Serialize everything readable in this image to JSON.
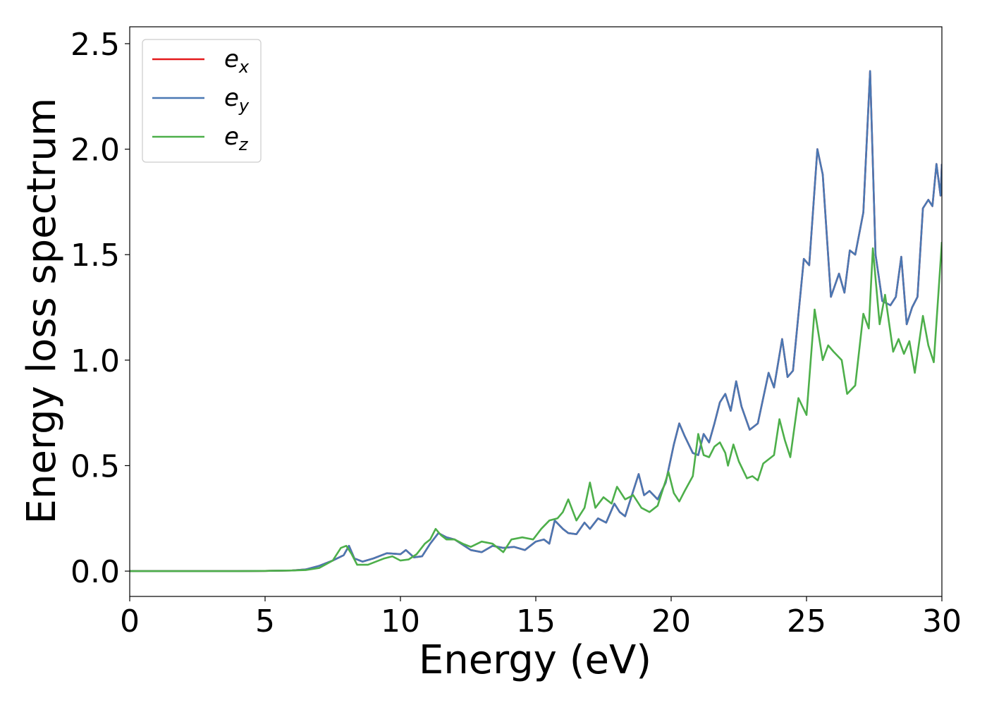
{
  "chart_data": {
    "type": "line",
    "title": "",
    "xlabel": "Energy (eV)",
    "ylabel": "Energy loss spectrum",
    "xlim": [
      0,
      30
    ],
    "ylim": [
      -0.12,
      2.58
    ],
    "xticks": [
      {
        "value": 0,
        "label": "0"
      },
      {
        "value": 5,
        "label": "5"
      },
      {
        "value": 10,
        "label": "10"
      },
      {
        "value": 15,
        "label": "15"
      },
      {
        "value": 20,
        "label": "20"
      },
      {
        "value": 25,
        "label": "25"
      },
      {
        "value": 30,
        "label": "30"
      }
    ],
    "yticks": [
      {
        "value": 0.0,
        "label": "0.0"
      },
      {
        "value": 0.5,
        "label": "0.5"
      },
      {
        "value": 1.0,
        "label": "1.0"
      },
      {
        "value": 1.5,
        "label": "1.5"
      },
      {
        "value": 2.0,
        "label": "2.0"
      },
      {
        "value": 2.5,
        "label": "2.5"
      }
    ],
    "grid": false,
    "legend_position": "top-left",
    "series": [
      {
        "name": "e",
        "subscript": "x",
        "color": "#e41a1c",
        "points": [
          [
            0,
            0
          ],
          [
            2,
            0
          ],
          [
            4,
            0
          ],
          [
            5,
            0.001
          ],
          [
            6,
            0.003
          ],
          [
            6.5,
            0.008
          ],
          [
            7,
            0.025
          ],
          [
            7.5,
            0.05
          ],
          [
            7.9,
            0.075
          ],
          [
            8.1,
            0.12
          ],
          [
            8.3,
            0.06
          ],
          [
            8.6,
            0.045
          ],
          [
            9,
            0.06
          ],
          [
            9.5,
            0.085
          ],
          [
            10,
            0.08
          ],
          [
            10.2,
            0.1
          ],
          [
            10.5,
            0.065
          ],
          [
            10.8,
            0.07
          ],
          [
            11.1,
            0.13
          ],
          [
            11.4,
            0.18
          ],
          [
            11.7,
            0.16
          ],
          [
            12,
            0.15
          ],
          [
            12.3,
            0.125
          ],
          [
            12.6,
            0.1
          ],
          [
            13,
            0.09
          ],
          [
            13.4,
            0.12
          ],
          [
            13.8,
            0.11
          ],
          [
            14.2,
            0.115
          ],
          [
            14.6,
            0.1
          ],
          [
            15,
            0.14
          ],
          [
            15.3,
            0.15
          ],
          [
            15.5,
            0.13
          ],
          [
            15.7,
            0.24
          ],
          [
            16,
            0.2
          ],
          [
            16.2,
            0.18
          ],
          [
            16.5,
            0.175
          ],
          [
            16.8,
            0.23
          ],
          [
            17,
            0.2
          ],
          [
            17.3,
            0.25
          ],
          [
            17.6,
            0.23
          ],
          [
            17.9,
            0.32
          ],
          [
            18.1,
            0.28
          ],
          [
            18.3,
            0.26
          ],
          [
            18.5,
            0.34
          ],
          [
            18.8,
            0.46
          ],
          [
            19,
            0.36
          ],
          [
            19.2,
            0.38
          ],
          [
            19.5,
            0.34
          ],
          [
            19.8,
            0.42
          ],
          [
            20.1,
            0.6
          ],
          [
            20.3,
            0.7
          ],
          [
            20.5,
            0.64
          ],
          [
            20.8,
            0.56
          ],
          [
            21,
            0.55
          ],
          [
            21.2,
            0.65
          ],
          [
            21.4,
            0.61
          ],
          [
            21.6,
            0.7
          ],
          [
            21.8,
            0.8
          ],
          [
            22,
            0.84
          ],
          [
            22.2,
            0.76
          ],
          [
            22.4,
            0.9
          ],
          [
            22.6,
            0.78
          ],
          [
            22.9,
            0.67
          ],
          [
            23.2,
            0.7
          ],
          [
            23.6,
            0.94
          ],
          [
            23.8,
            0.87
          ],
          [
            24.1,
            1.1
          ],
          [
            24.3,
            0.92
          ],
          [
            24.5,
            0.95
          ],
          [
            24.9,
            1.48
          ],
          [
            25.1,
            1.45
          ],
          [
            25.4,
            2.0
          ],
          [
            25.6,
            1.88
          ],
          [
            25.9,
            1.3
          ],
          [
            26.2,
            1.41
          ],
          [
            26.4,
            1.32
          ],
          [
            26.6,
            1.52
          ],
          [
            26.8,
            1.5
          ],
          [
            27.1,
            1.7
          ],
          [
            27.35,
            2.37
          ],
          [
            27.55,
            1.5
          ],
          [
            27.8,
            1.28
          ],
          [
            28.1,
            1.26
          ],
          [
            28.3,
            1.3
          ],
          [
            28.5,
            1.49
          ],
          [
            28.7,
            1.17
          ],
          [
            28.9,
            1.25
          ],
          [
            29.1,
            1.3
          ],
          [
            29.3,
            1.72
          ],
          [
            29.5,
            1.76
          ],
          [
            29.65,
            1.73
          ],
          [
            29.8,
            1.93
          ],
          [
            29.95,
            1.78
          ],
          [
            30,
            1.93
          ]
        ]
      },
      {
        "name": "e",
        "subscript": "y",
        "color": "#4a78b3",
        "points": [
          [
            0,
            0
          ],
          [
            2,
            0
          ],
          [
            4,
            0
          ],
          [
            5,
            0.001
          ],
          [
            6,
            0.003
          ],
          [
            6.5,
            0.008
          ],
          [
            7,
            0.025
          ],
          [
            7.5,
            0.05
          ],
          [
            7.9,
            0.075
          ],
          [
            8.1,
            0.12
          ],
          [
            8.3,
            0.06
          ],
          [
            8.6,
            0.045
          ],
          [
            9,
            0.06
          ],
          [
            9.5,
            0.085
          ],
          [
            10,
            0.08
          ],
          [
            10.2,
            0.1
          ],
          [
            10.5,
            0.065
          ],
          [
            10.8,
            0.07
          ],
          [
            11.1,
            0.13
          ],
          [
            11.4,
            0.18
          ],
          [
            11.7,
            0.16
          ],
          [
            12,
            0.15
          ],
          [
            12.3,
            0.125
          ],
          [
            12.6,
            0.1
          ],
          [
            13,
            0.09
          ],
          [
            13.4,
            0.12
          ],
          [
            13.8,
            0.11
          ],
          [
            14.2,
            0.115
          ],
          [
            14.6,
            0.1
          ],
          [
            15,
            0.14
          ],
          [
            15.3,
            0.15
          ],
          [
            15.5,
            0.13
          ],
          [
            15.7,
            0.24
          ],
          [
            16,
            0.2
          ],
          [
            16.2,
            0.18
          ],
          [
            16.5,
            0.175
          ],
          [
            16.8,
            0.23
          ],
          [
            17,
            0.2
          ],
          [
            17.3,
            0.25
          ],
          [
            17.6,
            0.23
          ],
          [
            17.9,
            0.32
          ],
          [
            18.1,
            0.28
          ],
          [
            18.3,
            0.26
          ],
          [
            18.5,
            0.34
          ],
          [
            18.8,
            0.46
          ],
          [
            19,
            0.36
          ],
          [
            19.2,
            0.38
          ],
          [
            19.5,
            0.34
          ],
          [
            19.8,
            0.42
          ],
          [
            20.1,
            0.6
          ],
          [
            20.3,
            0.7
          ],
          [
            20.5,
            0.64
          ],
          [
            20.8,
            0.56
          ],
          [
            21,
            0.55
          ],
          [
            21.2,
            0.65
          ],
          [
            21.4,
            0.61
          ],
          [
            21.6,
            0.7
          ],
          [
            21.8,
            0.8
          ],
          [
            22,
            0.84
          ],
          [
            22.2,
            0.76
          ],
          [
            22.4,
            0.9
          ],
          [
            22.6,
            0.78
          ],
          [
            22.9,
            0.67
          ],
          [
            23.2,
            0.7
          ],
          [
            23.6,
            0.94
          ],
          [
            23.8,
            0.87
          ],
          [
            24.1,
            1.1
          ],
          [
            24.3,
            0.92
          ],
          [
            24.5,
            0.95
          ],
          [
            24.9,
            1.48
          ],
          [
            25.1,
            1.45
          ],
          [
            25.4,
            2.0
          ],
          [
            25.6,
            1.88
          ],
          [
            25.9,
            1.3
          ],
          [
            26.2,
            1.41
          ],
          [
            26.4,
            1.32
          ],
          [
            26.6,
            1.52
          ],
          [
            26.8,
            1.5
          ],
          [
            27.1,
            1.7
          ],
          [
            27.35,
            2.37
          ],
          [
            27.55,
            1.5
          ],
          [
            27.8,
            1.28
          ],
          [
            28.1,
            1.26
          ],
          [
            28.3,
            1.3
          ],
          [
            28.5,
            1.49
          ],
          [
            28.7,
            1.17
          ],
          [
            28.9,
            1.25
          ],
          [
            29.1,
            1.3
          ],
          [
            29.3,
            1.72
          ],
          [
            29.5,
            1.76
          ],
          [
            29.65,
            1.73
          ],
          [
            29.8,
            1.93
          ],
          [
            29.95,
            1.78
          ],
          [
            30,
            1.93
          ]
        ]
      },
      {
        "name": "e",
        "subscript": "z",
        "color": "#4daf4a",
        "points": [
          [
            0,
            0
          ],
          [
            2,
            0
          ],
          [
            4,
            0
          ],
          [
            5,
            0.001
          ],
          [
            6,
            0.003
          ],
          [
            6.5,
            0.005
          ],
          [
            7,
            0.015
          ],
          [
            7.5,
            0.05
          ],
          [
            7.8,
            0.11
          ],
          [
            8,
            0.12
          ],
          [
            8.2,
            0.08
          ],
          [
            8.4,
            0.03
          ],
          [
            8.8,
            0.03
          ],
          [
            9.1,
            0.045
          ],
          [
            9.4,
            0.06
          ],
          [
            9.7,
            0.07
          ],
          [
            10,
            0.05
          ],
          [
            10.3,
            0.055
          ],
          [
            10.6,
            0.08
          ],
          [
            10.9,
            0.13
          ],
          [
            11.1,
            0.15
          ],
          [
            11.3,
            0.2
          ],
          [
            11.5,
            0.17
          ],
          [
            11.7,
            0.15
          ],
          [
            12,
            0.15
          ],
          [
            12.3,
            0.13
          ],
          [
            12.6,
            0.115
          ],
          [
            13,
            0.14
          ],
          [
            13.4,
            0.13
          ],
          [
            13.8,
            0.09
          ],
          [
            14.1,
            0.15
          ],
          [
            14.5,
            0.16
          ],
          [
            14.9,
            0.15
          ],
          [
            15.2,
            0.2
          ],
          [
            15.5,
            0.24
          ],
          [
            15.8,
            0.25
          ],
          [
            16,
            0.28
          ],
          [
            16.2,
            0.34
          ],
          [
            16.5,
            0.24
          ],
          [
            16.8,
            0.3
          ],
          [
            17,
            0.42
          ],
          [
            17.2,
            0.3
          ],
          [
            17.5,
            0.35
          ],
          [
            17.8,
            0.32
          ],
          [
            18,
            0.4
          ],
          [
            18.3,
            0.34
          ],
          [
            18.6,
            0.36
          ],
          [
            18.9,
            0.3
          ],
          [
            19.2,
            0.28
          ],
          [
            19.5,
            0.31
          ],
          [
            19.9,
            0.47
          ],
          [
            20.1,
            0.37
          ],
          [
            20.3,
            0.33
          ],
          [
            20.5,
            0.38
          ],
          [
            20.8,
            0.45
          ],
          [
            21,
            0.65
          ],
          [
            21.2,
            0.55
          ],
          [
            21.4,
            0.54
          ],
          [
            21.6,
            0.59
          ],
          [
            21.8,
            0.61
          ],
          [
            22,
            0.56
          ],
          [
            22.1,
            0.5
          ],
          [
            22.3,
            0.6
          ],
          [
            22.5,
            0.52
          ],
          [
            22.8,
            0.44
          ],
          [
            23,
            0.45
          ],
          [
            23.2,
            0.43
          ],
          [
            23.4,
            0.51
          ],
          [
            23.8,
            0.55
          ],
          [
            24,
            0.72
          ],
          [
            24.2,
            0.62
          ],
          [
            24.4,
            0.54
          ],
          [
            24.7,
            0.82
          ],
          [
            25,
            0.74
          ],
          [
            25.3,
            1.24
          ],
          [
            25.6,
            1.0
          ],
          [
            25.8,
            1.07
          ],
          [
            26,
            1.04
          ],
          [
            26.3,
            1.0
          ],
          [
            26.5,
            0.84
          ],
          [
            26.8,
            0.88
          ],
          [
            27.1,
            1.22
          ],
          [
            27.3,
            1.15
          ],
          [
            27.45,
            1.53
          ],
          [
            27.7,
            1.17
          ],
          [
            27.9,
            1.31
          ],
          [
            28.2,
            1.04
          ],
          [
            28.4,
            1.1
          ],
          [
            28.6,
            1.03
          ],
          [
            28.8,
            1.09
          ],
          [
            29,
            0.94
          ],
          [
            29.3,
            1.21
          ],
          [
            29.5,
            1.07
          ],
          [
            29.7,
            0.99
          ],
          [
            30,
            1.56
          ]
        ]
      }
    ]
  }
}
